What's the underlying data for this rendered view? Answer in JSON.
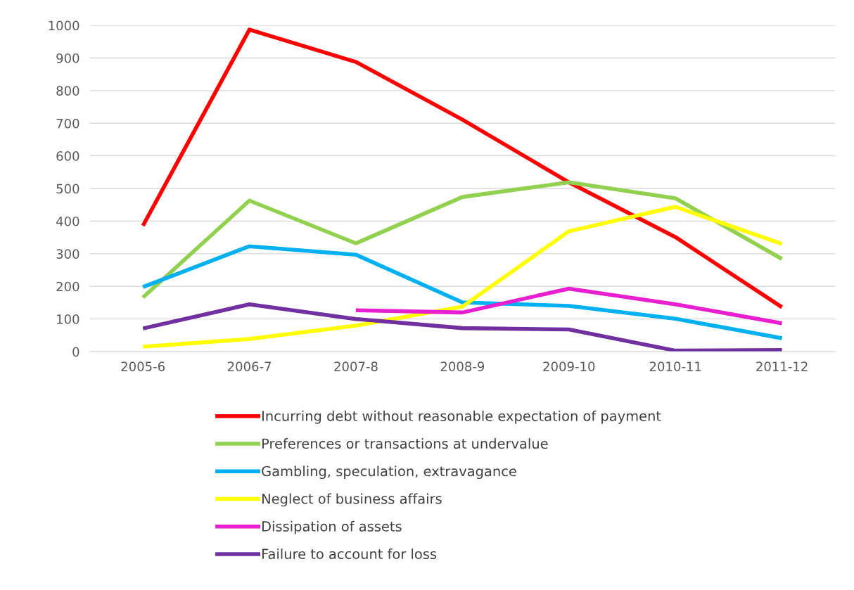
{
  "chart_data": {
    "type": "line",
    "categories": [
      "2005-6",
      "2006-7",
      "2007-8",
      "2008-9",
      "2009-10",
      "2010-11",
      "2011-12"
    ],
    "series": [
      {
        "name": "Incurring debt without reasonable expectation of payment",
        "color": "#ff0000",
        "values": [
          386,
          987,
          888,
          711,
          519,
          351,
          136
        ]
      },
      {
        "name": "Preferences or transactions at undervalue",
        "color": "#92d050",
        "values": [
          166,
          463,
          332,
          474,
          519,
          470,
          284
        ]
      },
      {
        "name": "Gambling, speculation, extravagance",
        "color": "#00b0f0",
        "values": [
          198,
          323,
          297,
          151,
          140,
          101,
          41
        ]
      },
      {
        "name": "Neglect of business affairs",
        "color": "#ffff00",
        "values": [
          15,
          39,
          80,
          138,
          369,
          444,
          330
        ]
      },
      {
        "name": "Dissipation of assets",
        "color": "#e81fd0",
        "values": [
          null,
          null,
          127,
          120,
          193,
          145,
          87
        ]
      },
      {
        "name": "Failure to account for loss",
        "color": "#7030a0",
        "values": [
          71,
          145,
          100,
          72,
          68,
          3,
          5
        ]
      }
    ],
    "ylim": [
      0,
      1000
    ],
    "yticks": [
      0,
      100,
      200,
      300,
      400,
      500,
      600,
      700,
      800,
      900,
      1000
    ],
    "grid": "y",
    "legend": "bottom",
    "marker": "none",
    "line_style": "solid"
  }
}
